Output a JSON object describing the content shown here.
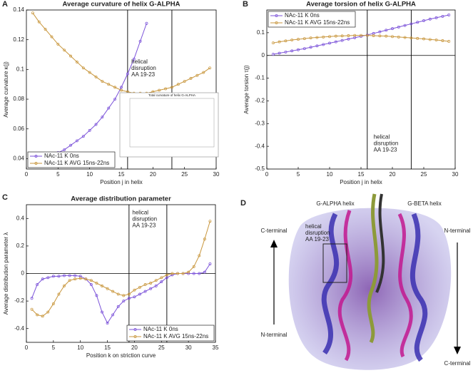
{
  "chart_data": [
    {
      "type": "line",
      "panel": "A",
      "title": "Average curvature of helix G-ALPHA",
      "xlabel": "Position j in helix",
      "ylabel": "Average curvature  κ(j)",
      "x": [
        1,
        2,
        3,
        4,
        5,
        6,
        7,
        8,
        9,
        10,
        11,
        12,
        13,
        14,
        15,
        16,
        17,
        18,
        19,
        20,
        21,
        22,
        23,
        24,
        25,
        26,
        27,
        28,
        29
      ],
      "series": [
        {
          "name": "NAc-11 K 0ns",
          "color": "#7b52d9",
          "values": [
            0.035,
            0.038,
            0.04,
            0.042,
            0.044,
            0.046,
            0.049,
            0.052,
            0.055,
            0.059,
            0.063,
            0.068,
            0.074,
            0.08,
            0.088,
            0.097,
            0.107,
            0.119,
            0.131,
            null,
            null,
            null,
            null,
            null,
            null,
            null,
            null,
            null,
            null
          ]
        },
        {
          "name": "NAc-11 K AVG 15ns-22ns",
          "color": "#c8963c",
          "values": [
            0.138,
            0.132,
            0.127,
            0.122,
            0.117,
            0.113,
            0.109,
            0.105,
            0.101,
            0.098,
            0.095,
            0.092,
            0.09,
            0.088,
            0.086,
            0.085,
            0.084,
            0.084,
            0.084,
            0.085,
            0.086,
            0.087,
            0.088,
            0.09,
            0.092,
            0.094,
            0.096,
            0.098,
            0.101
          ]
        }
      ],
      "xlim": [
        0,
        30
      ],
      "xticks": [
        0,
        5,
        10,
        15,
        20,
        25,
        30
      ],
      "ylim": [
        0.033,
        0.14
      ],
      "yticks": [
        0.04,
        0.06,
        0.08,
        0.1,
        0.12,
        0.14
      ],
      "vlines": [
        16,
        23
      ],
      "annotation": [
        "helical",
        "disruption",
        "AA 19-23"
      ],
      "legend": "lower left",
      "inset_title": "Total curvature of helix G-ALPHA"
    },
    {
      "type": "line",
      "panel": "B",
      "title": "Average torsion of helix G-ALPHA",
      "xlabel": "Position j in helix",
      "ylabel": "Average torsion  τ(j)",
      "x": [
        1,
        2,
        3,
        4,
        5,
        6,
        7,
        8,
        9,
        10,
        11,
        12,
        13,
        14,
        15,
        16,
        17,
        18,
        19,
        20,
        21,
        22,
        23,
        24,
        25,
        26,
        27,
        28,
        29
      ],
      "series": [
        {
          "name": "NAc-11 K 0ns",
          "color": "#7b52d9",
          "values": [
            0.005,
            0.01,
            0.015,
            0.02,
            0.025,
            0.03,
            0.036,
            0.042,
            0.048,
            0.054,
            0.06,
            0.066,
            0.072,
            0.078,
            0.084,
            0.09,
            0.097,
            0.104,
            0.111,
            0.118,
            0.125,
            0.132,
            0.139,
            0.146,
            0.153,
            0.16,
            0.166,
            0.172,
            0.178
          ]
        },
        {
          "name": "NAc-11 K AVG 15ns-22ns",
          "color": "#c8963c",
          "values": [
            0.055,
            0.06,
            0.064,
            0.068,
            0.071,
            0.074,
            0.077,
            0.079,
            0.081,
            0.083,
            0.085,
            0.086,
            0.087,
            0.088,
            0.088,
            0.088,
            0.087,
            0.086,
            0.085,
            0.083,
            0.081,
            0.079,
            0.077,
            0.075,
            0.073,
            0.07,
            0.068,
            0.065,
            0.062
          ]
        }
      ],
      "xlim": [
        0,
        30
      ],
      "xticks": [
        0,
        5,
        10,
        15,
        20,
        25,
        30
      ],
      "ylim": [
        -0.5,
        0.2
      ],
      "yticks": [
        -0.5,
        -0.4,
        -0.3,
        -0.2,
        -0.1,
        0,
        0.1
      ],
      "vlines": [
        16,
        23
      ],
      "zero_line": true,
      "annotation": [
        "helical",
        "disruption",
        "AA 19-23"
      ],
      "legend": "upper left"
    },
    {
      "type": "line",
      "panel": "C",
      "title": "Average distribution parameter",
      "xlabel": "Position k on striction curve",
      "ylabel": "Average distribution parameter  λ",
      "x": [
        1,
        2,
        3,
        4,
        5,
        6,
        7,
        8,
        9,
        10,
        11,
        12,
        13,
        14,
        15,
        16,
        17,
        18,
        19,
        20,
        21,
        22,
        23,
        24,
        25,
        26,
        27,
        28,
        29,
        30,
        31,
        32,
        33,
        34
      ],
      "series": [
        {
          "name": "NAc-11 K 0ns",
          "color": "#7b52d9",
          "values": [
            -0.18,
            -0.08,
            -0.04,
            -0.03,
            -0.02,
            -0.02,
            -0.015,
            -0.015,
            -0.015,
            -0.02,
            -0.04,
            -0.08,
            -0.16,
            -0.28,
            -0.36,
            -0.3,
            -0.24,
            -0.2,
            -0.18,
            -0.17,
            -0.15,
            -0.13,
            -0.11,
            -0.09,
            -0.06,
            -0.03,
            -0.01,
            0,
            0,
            0,
            0,
            0,
            0.01,
            0.07
          ]
        },
        {
          "name": "NAc-11 K AVG 15ns-22ns",
          "color": "#c8963c",
          "values": [
            -0.26,
            -0.3,
            -0.31,
            -0.28,
            -0.22,
            -0.15,
            -0.09,
            -0.05,
            -0.04,
            -0.035,
            -0.04,
            -0.05,
            -0.07,
            -0.09,
            -0.11,
            -0.13,
            -0.15,
            -0.16,
            -0.15,
            -0.12,
            -0.1,
            -0.08,
            -0.07,
            -0.05,
            -0.03,
            -0.01,
            0,
            0,
            0,
            0.01,
            0.05,
            0.13,
            0.25,
            0.38
          ]
        }
      ],
      "xlim": [
        0,
        35
      ],
      "xticks": [
        0,
        5,
        10,
        15,
        20,
        25,
        30,
        35
      ],
      "ylim": [
        -0.5,
        0.5
      ],
      "yticks": [
        -0.4,
        -0.2,
        0,
        0.2,
        0.4
      ],
      "vlines": [
        19,
        26
      ],
      "zero_line": true,
      "annotation": [
        "helical",
        "disruption",
        "AA 19-23"
      ],
      "legend": "lower right"
    }
  ],
  "panel_d": {
    "panel": "D",
    "left_helix": "G-ALPHA helix",
    "right_helix": "G-BETA helix",
    "left_top": "C-terminal",
    "left_bottom": "N-terminal",
    "right_top": "N-terminal",
    "right_bottom": "C-terminal",
    "annotation": [
      "helical",
      "disruption",
      "AA 19-23"
    ]
  }
}
